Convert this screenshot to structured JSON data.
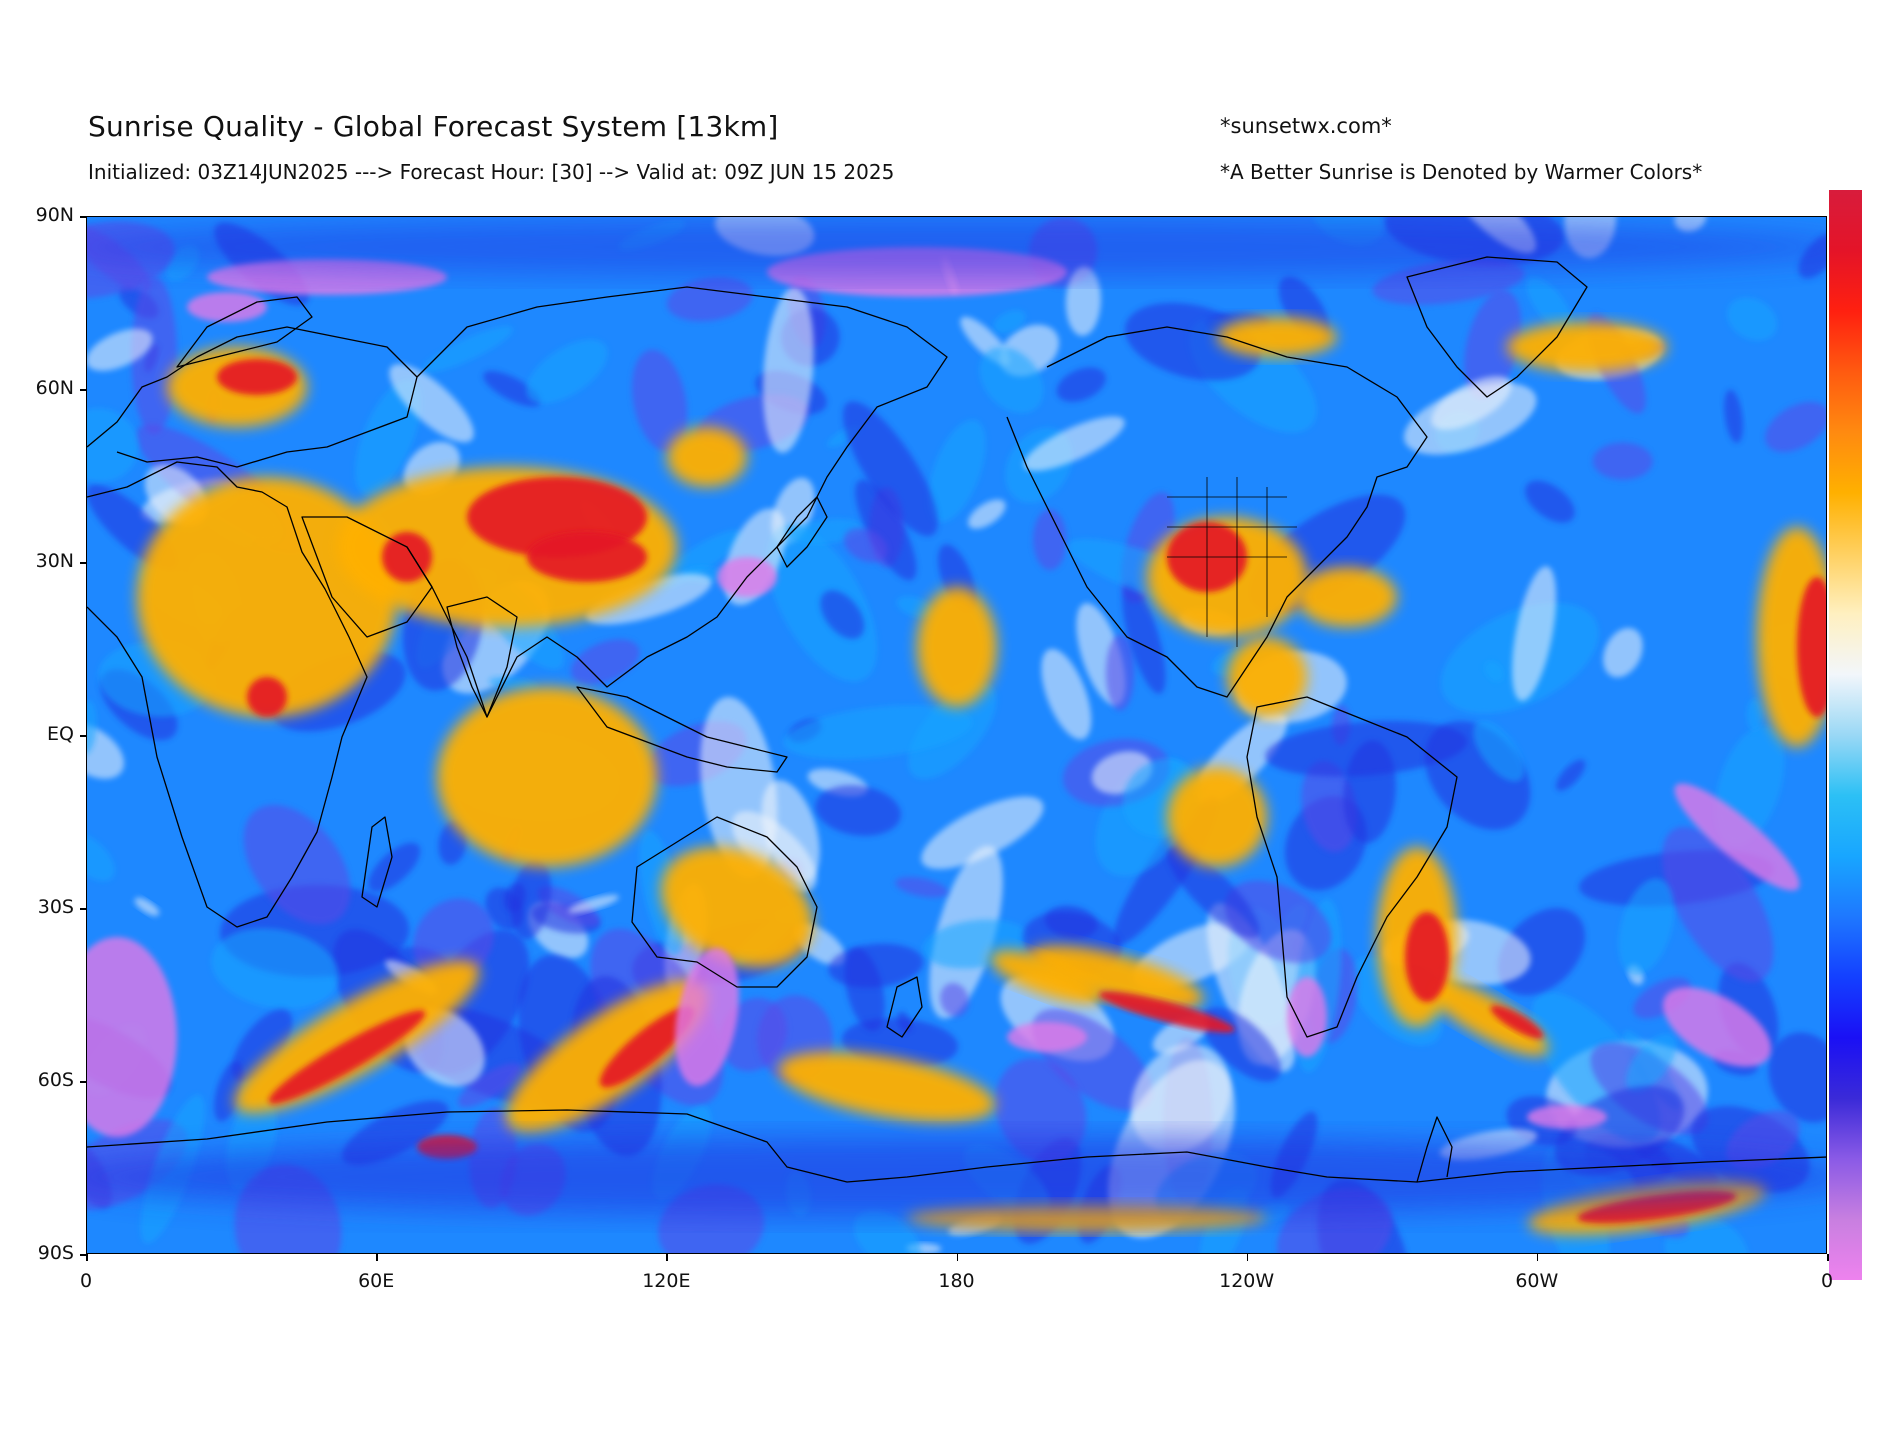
{
  "header": {
    "title": "Sunrise Quality - Global Forecast System [13km]",
    "subtitle": "Initialized: 03Z14JUN2025 ---> Forecast Hour: [30] --> Valid at: 09Z JUN 15 2025",
    "site": "*sunsetwx.com*",
    "note": "*A Better Sunrise is Denoted by Warmer Colors*"
  },
  "axes": {
    "lat_ticks": [
      "90N",
      "60N",
      "30N",
      "EQ",
      "30S",
      "60S",
      "90S"
    ],
    "lon_ticks": [
      "0",
      "60E",
      "120E",
      "180",
      "120W",
      "60W",
      "0"
    ]
  },
  "colors": {
    "colorbar": [
      "#ee82ee",
      "#c87fe0",
      "#8a5ae6",
      "#3a2ad8",
      "#1a10f5",
      "#1440ff",
      "#1e78ff",
      "#18a6ff",
      "#2cc0f5",
      "#9ad8f5",
      "#f2f6fb",
      "#fff0c0",
      "#ffd060",
      "#ffb000",
      "#ff8a10",
      "#ff5a10",
      "#ff2010",
      "#e41428",
      "#d81c3c"
    ],
    "ocean_base": "#1e88ff",
    "warm": "#ffb000",
    "hot": "#e41428",
    "cool": "#2030e0",
    "violet": "#e07ae8"
  }
}
